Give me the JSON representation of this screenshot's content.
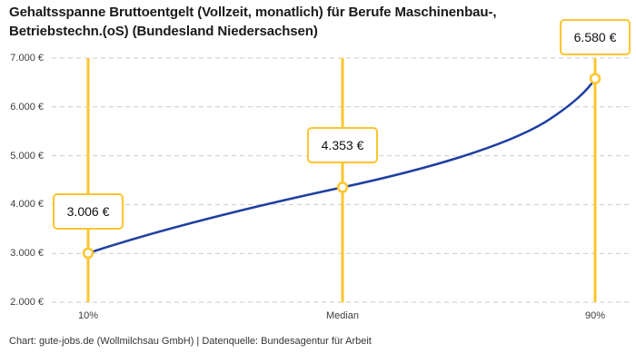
{
  "header": {
    "title_line1": "Gehaltsspanne Bruttoentgelt (Vollzeit, monatlich) für Berufe Maschinenbau-,",
    "title_line2": "Betriebstechn.(oS) (Bundesland Niedersachsen)"
  },
  "footer": {
    "credit": "Chart: gute-jobs.de (Wollmilchsau GmbH) | Datenquelle: Bundesagentur für Arbeit"
  },
  "colors": {
    "accent_yellow": "#FDC52E",
    "line_blue": "#1E3FA1",
    "grid": "#CBCBCB",
    "title_text": "#1A1A1A",
    "axis_text": "#3D3D3D"
  },
  "chart_data": {
    "type": "line",
    "title": "Gehaltsspanne Bruttoentgelt (Vollzeit, monatlich) für Berufe Maschinenbau-, Betriebstechn.(oS) (Bundesland Niedersachsen)",
    "categories": [
      "10%",
      "Median",
      "90%"
    ],
    "values": [
      3006,
      4353,
      6580
    ],
    "value_labels": [
      "3.006 €",
      "4.353 €",
      "6.580 €"
    ],
    "series_name": "Bruttoentgelt (Vollzeit, monatlich)",
    "xlabel": "",
    "ylabel": "",
    "ylim": [
      2000,
      7000
    ],
    "y_ticks": [
      {
        "value": 2000,
        "label": "2.000 €"
      },
      {
        "value": 3000,
        "label": "3.000 €"
      },
      {
        "value": 4000,
        "label": "4.000 €"
      },
      {
        "value": 5000,
        "label": "5.000 €"
      },
      {
        "value": 6000,
        "label": "6.000 €"
      },
      {
        "value": 7000,
        "label": "7.000 €"
      }
    ],
    "grid": "horizontal-dashed",
    "legend": "none",
    "marker": "open-circle",
    "annotations": "each percentile has a vertical yellow line with a boxed value label above the data point"
  }
}
